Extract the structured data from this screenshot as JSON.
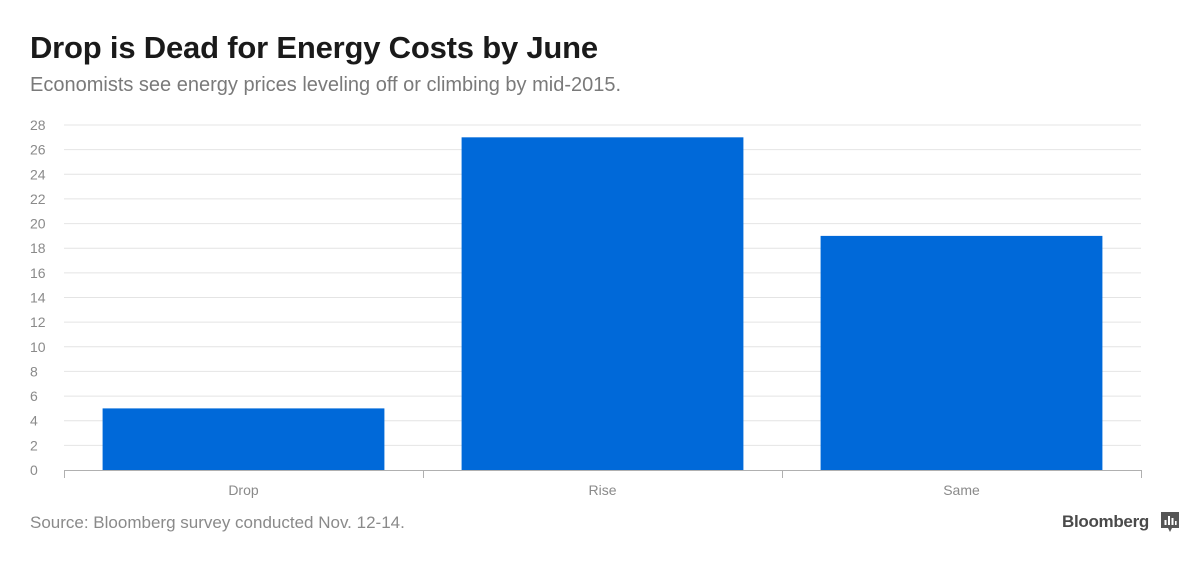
{
  "header": {
    "title": "Drop is Dead for Energy Costs by June",
    "subtitle": "Economists see energy prices leveling off or climbing by mid-2015."
  },
  "footer": {
    "source": "Source: Bloomberg survey conducted Nov. 12-14.",
    "brand": "Bloomberg",
    "brand_icon": "bar-chart-icon"
  },
  "colors": {
    "bar": "#0069d9",
    "grid": "#e4e4e4",
    "axis": "#b0b0b0"
  },
  "chart_data": {
    "type": "bar",
    "title": "Drop is Dead for Energy Costs by June",
    "subtitle": "Economists see energy prices leveling off or climbing by mid-2015.",
    "xlabel": "",
    "ylabel": "",
    "categories": [
      "Drop",
      "Rise",
      "Same"
    ],
    "values": [
      5,
      27,
      19
    ],
    "ylim": [
      0,
      28
    ],
    "yticks": [
      0,
      2,
      4,
      6,
      8,
      10,
      12,
      14,
      16,
      18,
      20,
      22,
      24,
      26,
      28
    ],
    "grid": true,
    "legend": "none"
  }
}
